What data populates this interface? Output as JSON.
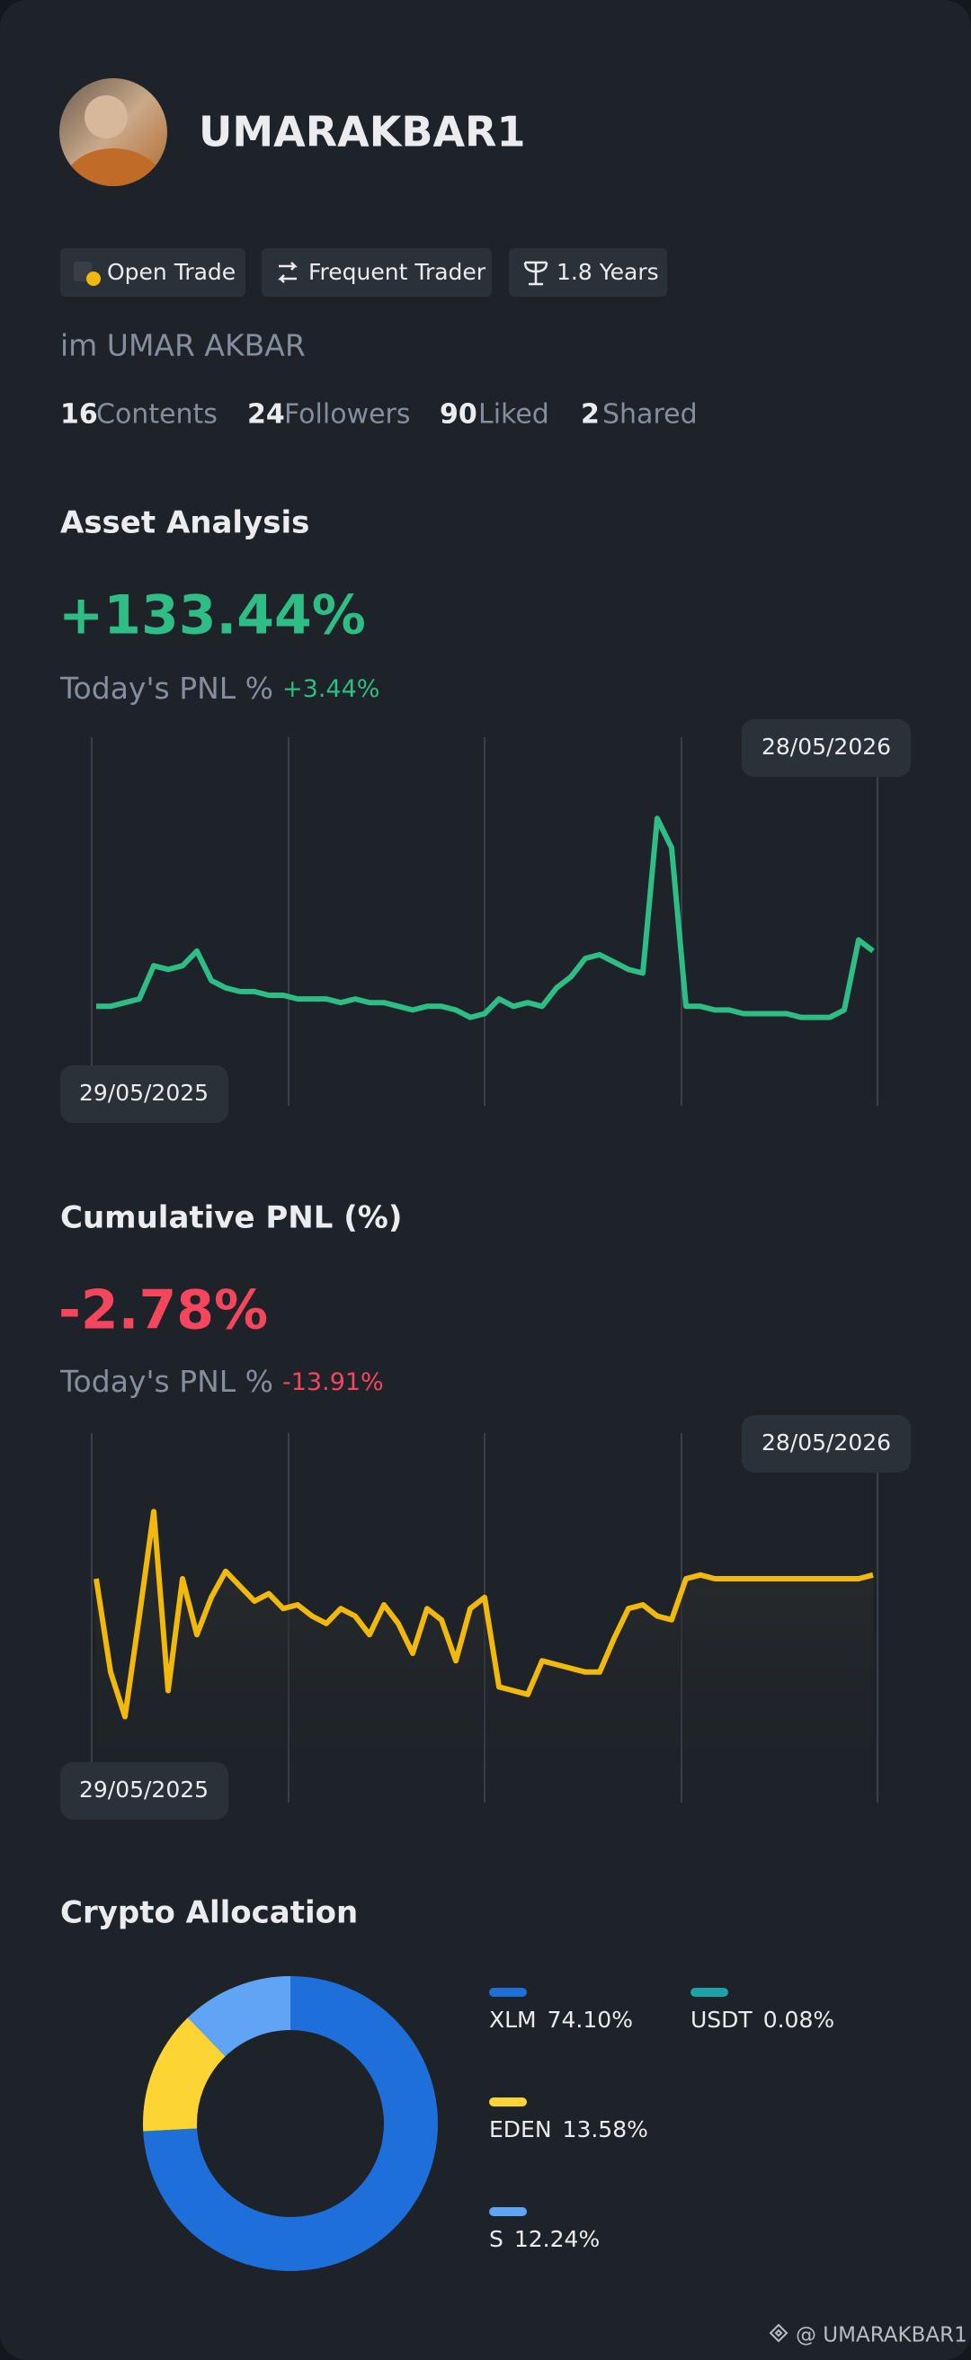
{
  "profile": {
    "name": "UMARAKBAR1",
    "display_name": "im UMAR AKBAR",
    "badges": [
      "Open Trade",
      "Frequent Trader",
      "1.8 Years"
    ],
    "stats": [
      {
        "count": 16,
        "label": "Contents"
      },
      {
        "count": 24,
        "label": "Followers"
      },
      {
        "count": 90,
        "label": "Liked"
      },
      {
        "count": 2,
        "label": "Shared"
      }
    ]
  },
  "chart_data": [
    {
      "type": "line",
      "title": "Asset Analysis",
      "headline": "+133.44%",
      "today_label": "Today's PNL %",
      "today_value": "+3.44%",
      "start_label": "29/05/2025",
      "end_label": "28/05/2026",
      "ylim": [
        0,
        100
      ],
      "area": false,
      "series": [
        {
          "color": "#2ebd85",
          "values": [
            27,
            27,
            28,
            29,
            38,
            37,
            38,
            42,
            34,
            32,
            31,
            31,
            30,
            30,
            29,
            29,
            29,
            28,
            29,
            28,
            28,
            27,
            26,
            27,
            27,
            26,
            24,
            25,
            29,
            27,
            28,
            27,
            32,
            35,
            40,
            41,
            39,
            37,
            36,
            78,
            70,
            27,
            27,
            26,
            26,
            25,
            25,
            25,
            25,
            24,
            24,
            24,
            26,
            45,
            42
          ]
        }
      ]
    },
    {
      "type": "line",
      "title": "Cumulative PNL (%)",
      "headline": "-2.78%",
      "today_label": "Today's PNL %",
      "today_value": "-13.91%",
      "start_label": "29/05/2025",
      "end_label": "28/05/2026",
      "ylim": [
        0,
        100
      ],
      "area": true,
      "series": [
        {
          "color": "#f0b90b",
          "values": [
            60,
            35,
            23,
            50,
            78,
            30,
            60,
            45,
            55,
            62,
            58,
            54,
            56,
            52,
            53,
            50,
            48,
            52,
            50,
            45,
            53,
            48,
            40,
            52,
            49,
            38,
            52,
            55,
            31,
            30,
            29,
            38,
            37,
            36,
            35,
            35,
            44,
            52,
            53,
            50,
            49,
            60,
            61,
            60,
            60,
            60,
            60,
            60,
            60,
            60,
            60,
            60,
            60,
            60,
            61
          ]
        }
      ]
    },
    {
      "type": "pie",
      "title": "Crypto Allocation",
      "categories": [
        "XLM",
        "USDT",
        "EDEN",
        "S"
      ],
      "values": [
        74.1,
        0.08,
        13.58,
        12.24
      ],
      "value_labels": [
        "74.10%",
        "0.08%",
        "13.58%",
        "12.24%"
      ],
      "colors": [
        "#1e6fd9",
        "#1ba3a8",
        "#fcd535",
        "#5fa4f5"
      ]
    }
  ],
  "watermark": "@ UMARAKBAR1"
}
